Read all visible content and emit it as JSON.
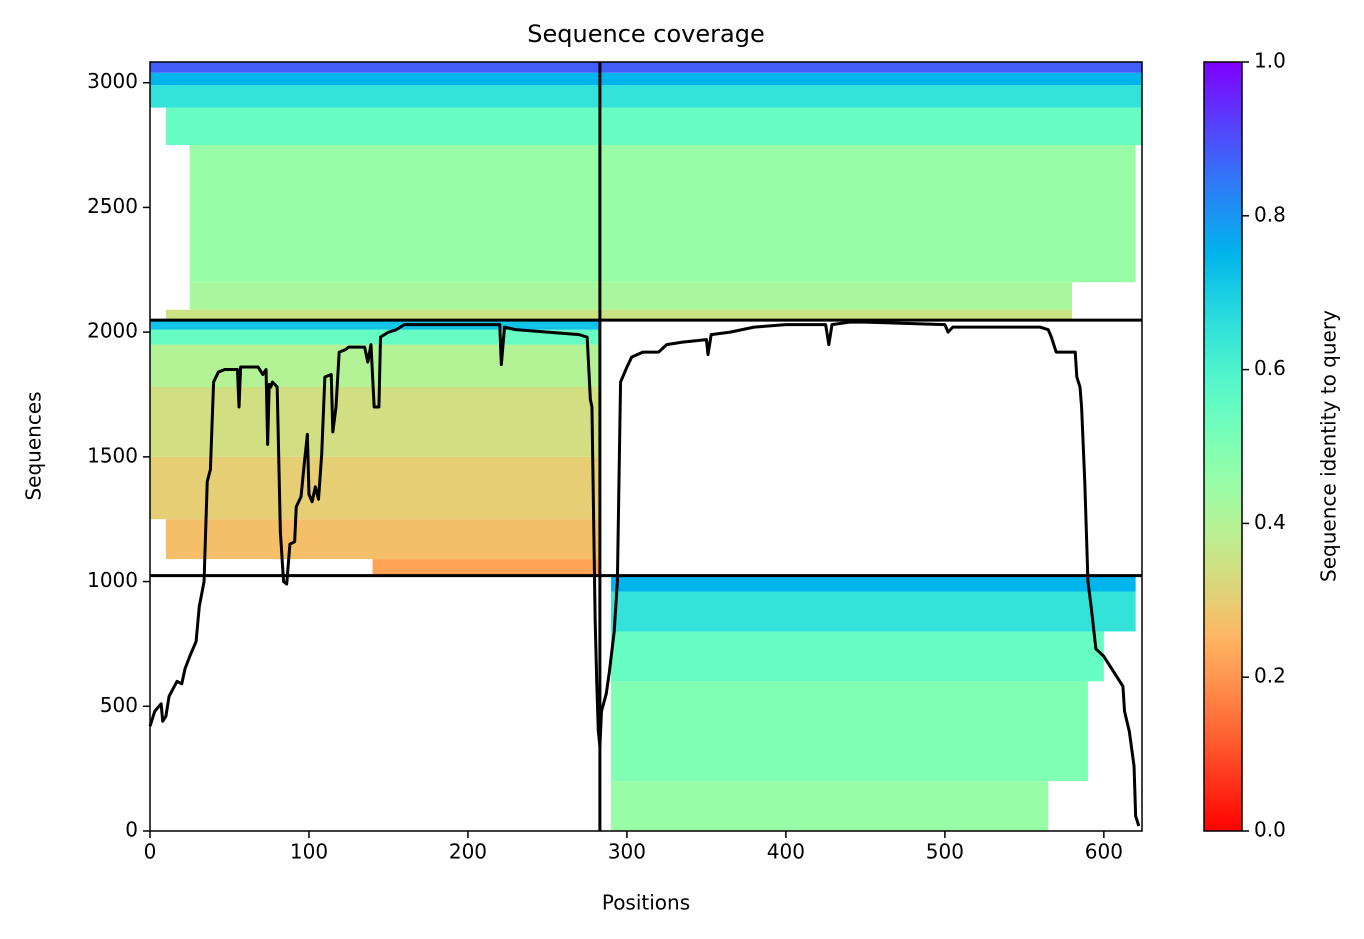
{
  "chart_data": {
    "type": "coverage",
    "title": "Sequence coverage",
    "x_label": "Positions",
    "y_label": "Sequences",
    "xlim": [
      0,
      624
    ],
    "ylim": [
      0,
      3083
    ],
    "xticks": [
      0,
      100,
      200,
      300,
      400,
      500,
      600
    ],
    "yticks": [
      0,
      500,
      1000,
      1500,
      2000,
      2500,
      3000
    ],
    "vlines": [
      283
    ],
    "hlines": [
      1024,
      2048
    ],
    "bands": [
      {
        "x": [
          10,
          580
        ],
        "y": [
          2048,
          2090
        ],
        "identity": 0.35
      },
      {
        "x": [
          25,
          580
        ],
        "y": [
          2090,
          2200
        ],
        "identity": 0.42
      },
      {
        "x": [
          25,
          620
        ],
        "y": [
          2200,
          2750
        ],
        "identity": 0.45
      },
      {
        "x": [
          10,
          624
        ],
        "y": [
          2750,
          2900
        ],
        "identity": 0.55
      },
      {
        "x": [
          0,
          624
        ],
        "y": [
          2900,
          2990
        ],
        "identity": 0.65
      },
      {
        "x": [
          0,
          624
        ],
        "y": [
          2990,
          3040
        ],
        "identity": 0.75
      },
      {
        "x": [
          0,
          624
        ],
        "y": [
          3040,
          3083
        ],
        "identity": 0.88
      },
      {
        "x": [
          140,
          283
        ],
        "y": [
          1024,
          1090
        ],
        "identity": 0.22
      },
      {
        "x": [
          10,
          283
        ],
        "y": [
          1090,
          1250
        ],
        "identity": 0.27
      },
      {
        "x": [
          0,
          283
        ],
        "y": [
          1250,
          1500
        ],
        "identity": 0.3
      },
      {
        "x": [
          0,
          283
        ],
        "y": [
          1500,
          1780
        ],
        "identity": 0.34
      },
      {
        "x": [
          0,
          283
        ],
        "y": [
          1780,
          1950
        ],
        "identity": 0.4
      },
      {
        "x": [
          0,
          283
        ],
        "y": [
          1950,
          2010
        ],
        "identity": 0.55
      },
      {
        "x": [
          0,
          283
        ],
        "y": [
          2010,
          2048
        ],
        "identity": 0.72
      },
      {
        "x": [
          290,
          565
        ],
        "y": [
          0,
          200
        ],
        "identity": 0.45
      },
      {
        "x": [
          290,
          590
        ],
        "y": [
          200,
          600
        ],
        "identity": 0.5
      },
      {
        "x": [
          290,
          600
        ],
        "y": [
          600,
          800
        ],
        "identity": 0.55
      },
      {
        "x": [
          290,
          620
        ],
        "y": [
          800,
          960
        ],
        "identity": 0.65
      },
      {
        "x": [
          290,
          620
        ],
        "y": [
          960,
          1024
        ],
        "identity": 0.75
      }
    ],
    "coverage": {
      "color": "#000000",
      "x": [
        0,
        3,
        7,
        8,
        10,
        12,
        17,
        20,
        22,
        25,
        29,
        31,
        34,
        36,
        38,
        40,
        43,
        47,
        55,
        56,
        57,
        68,
        71,
        73,
        74,
        75,
        76,
        77,
        80,
        82,
        84,
        86,
        88,
        91,
        92,
        95,
        97,
        99,
        100,
        102,
        104,
        106,
        108,
        110,
        114,
        115,
        117,
        119,
        123,
        125,
        135,
        137,
        139,
        141,
        144,
        145,
        150,
        155,
        160,
        200,
        220,
        221,
        223,
        230,
        270,
        275,
        277,
        278,
        280,
        281,
        282,
        283,
        284,
        287,
        289,
        292,
        294,
        296,
        300,
        303,
        310,
        320,
        325,
        335,
        350,
        351,
        353,
        365,
        380,
        400,
        425,
        427,
        429,
        440,
        450,
        500,
        502,
        505,
        560,
        565,
        567,
        570,
        582,
        583,
        585,
        586,
        588,
        590,
        592,
        595,
        600,
        608,
        612,
        613,
        616,
        619,
        620,
        622
      ],
      "y": [
        420,
        480,
        510,
        440,
        460,
        540,
        600,
        590,
        650,
        700,
        760,
        900,
        1000,
        1400,
        1450,
        1800,
        1840,
        1850,
        1850,
        1700,
        1860,
        1860,
        1830,
        1850,
        1550,
        1790,
        1780,
        1800,
        1780,
        1200,
        1000,
        990,
        1150,
        1160,
        1300,
        1340,
        1470,
        1590,
        1350,
        1320,
        1380,
        1330,
        1510,
        1820,
        1830,
        1600,
        1700,
        1920,
        1930,
        1940,
        1940,
        1880,
        1950,
        1700,
        1700,
        1980,
        2000,
        2010,
        2030,
        2030,
        2030,
        1870,
        2020,
        2010,
        1990,
        1980,
        1730,
        1700,
        850,
        600,
        400,
        340,
        480,
        550,
        640,
        800,
        1000,
        1800,
        1860,
        1900,
        1920,
        1920,
        1950,
        1960,
        1970,
        1910,
        1990,
        2000,
        2020,
        2030,
        2030,
        1950,
        2030,
        2040,
        2040,
        2030,
        2000,
        2020,
        2020,
        2010,
        1980,
        1920,
        1920,
        1820,
        1780,
        1700,
        1400,
        1000,
        900,
        730,
        700,
        620,
        580,
        480,
        400,
        260,
        60,
        20
      ]
    },
    "colorbar": {
      "label": "Sequence identity to query",
      "lim": [
        0,
        1
      ],
      "ticks": [
        {
          "value": 0,
          "label": "0.0"
        },
        0.2,
        0.4,
        0.6,
        0.8,
        {
          "value": 1,
          "label": "1.0"
        }
      ]
    }
  }
}
